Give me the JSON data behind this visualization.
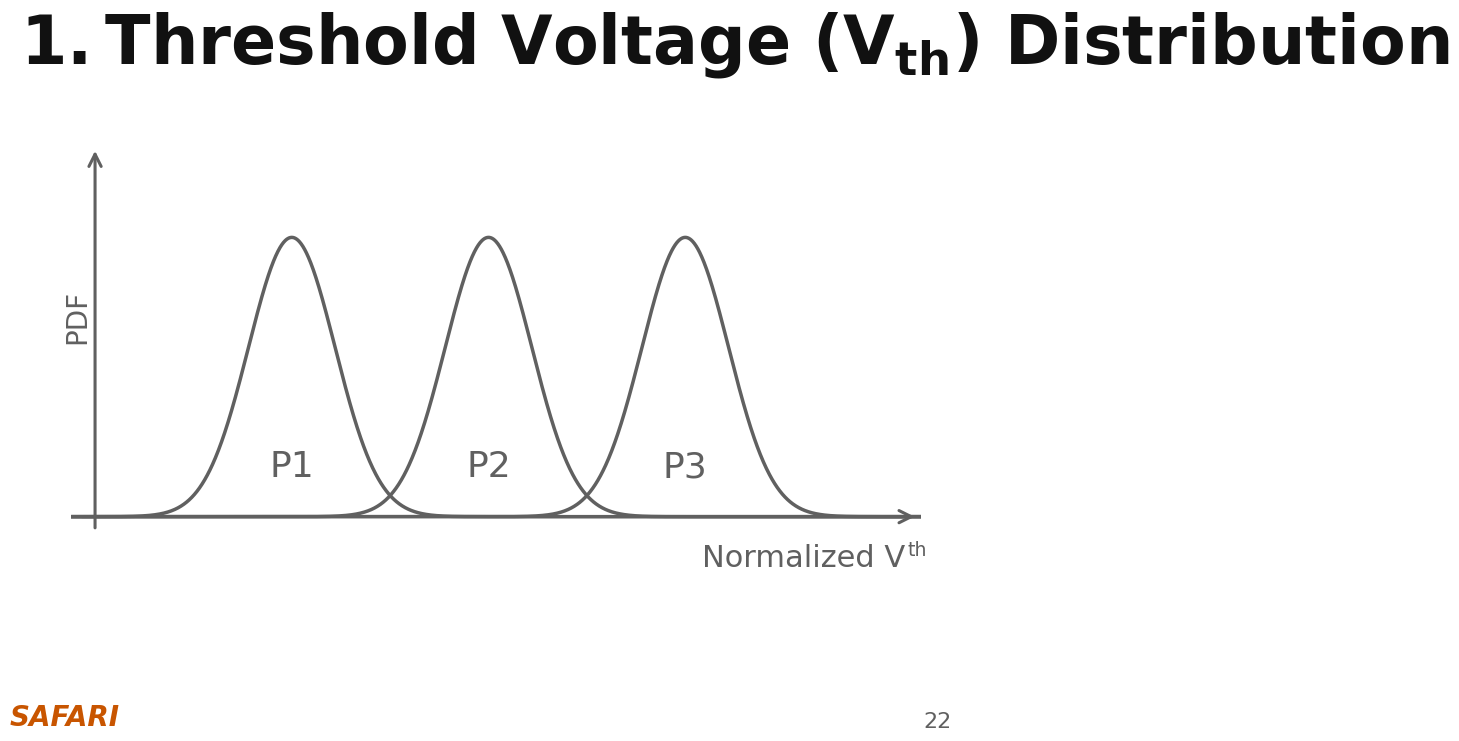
{
  "title_text": "$\\mathbf{1. Threshold\\ Voltage\\ (V_{th})\\ Distribution}$",
  "ylabel": "PDF",
  "xlabel_main": "Normalized V",
  "xlabel_sub": "th",
  "peaks": [
    2.5,
    5.0,
    7.5
  ],
  "sigma": 0.55,
  "labels": [
    "P1",
    "P2",
    "P3"
  ],
  "curve_color": "#606060",
  "axis_color": "#606060",
  "label_color": "#606060",
  "safari_color": "#C85500",
  "page_number": "22",
  "title_fontsize": 48,
  "ylabel_fontsize": 20,
  "xlabel_fontsize": 22,
  "label_fontsize": 26,
  "safari_fontsize": 20,
  "page_fontsize": 16,
  "curve_linewidth": 2.5,
  "axis_linewidth": 2.2,
  "background_color": "#ffffff"
}
